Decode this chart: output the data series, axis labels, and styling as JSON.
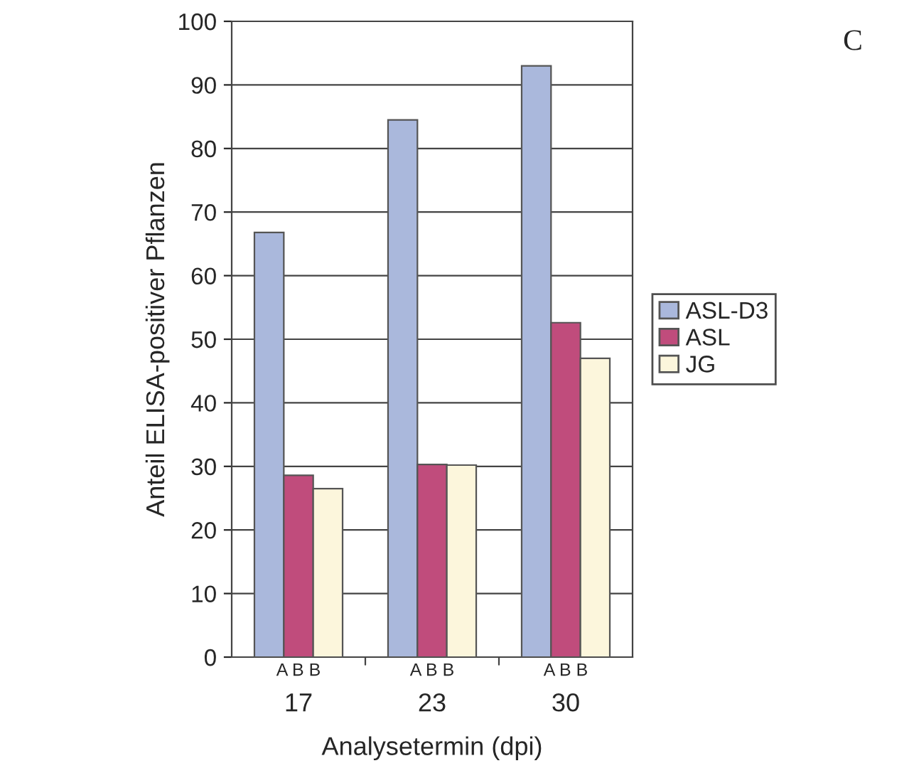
{
  "chart_data": {
    "type": "bar",
    "xlabel": "Analysetermin (dpi)",
    "ylabel": "Anteil ELISA-positiver Pflanzen",
    "categories": [
      "17",
      "23",
      "30"
    ],
    "series": [
      {
        "name": "ASL-D3",
        "color": "#aab8dc",
        "values": [
          66.8,
          84.5,
          93
        ]
      },
      {
        "name": "ASL",
        "color": "#c04c7c",
        "values": [
          28.6,
          30.3,
          52.6
        ]
      },
      {
        "name": "JG",
        "color": "#fcf6dc",
        "values": [
          26.5,
          30.2,
          47
        ]
      }
    ],
    "ylim": [
      0,
      100
    ],
    "yticks": [
      0,
      10,
      20,
      30,
      40,
      50,
      60,
      70,
      80,
      90,
      100
    ],
    "grid": "y",
    "legend": "right",
    "annotations": [
      "C",
      "A B B",
      "A B B",
      "A B B"
    ]
  }
}
